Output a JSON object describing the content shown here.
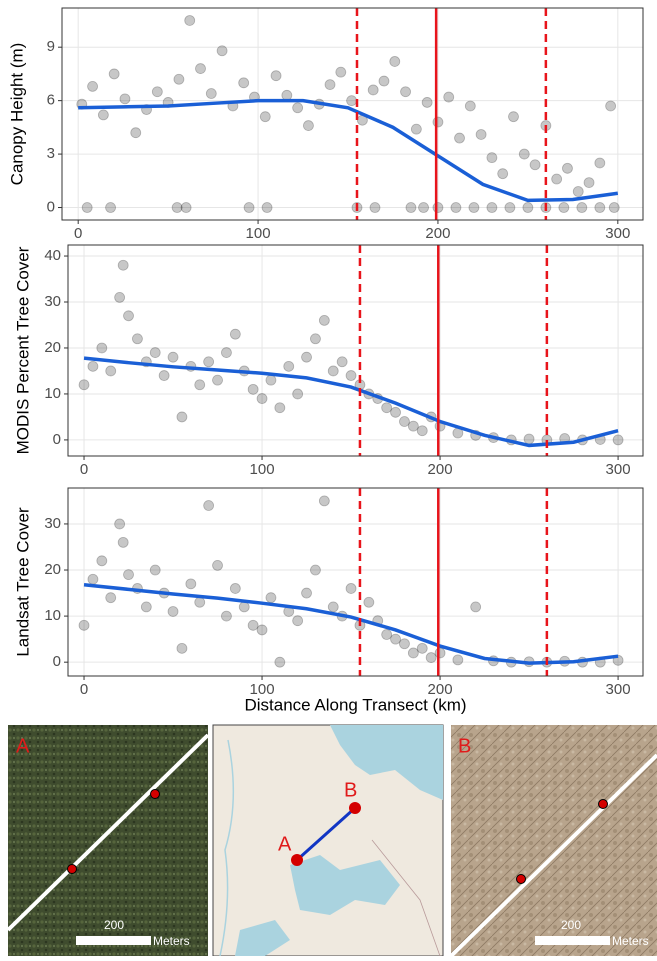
{
  "chart_data": [
    {
      "type": "scatter",
      "ylabel": "Canopy Height (m)",
      "xlim": [
        -9,
        314
      ],
      "xticks": [
        0,
        100,
        200,
        300
      ],
      "ylim": [
        -0.7,
        11.2
      ],
      "yticks": [
        0,
        3,
        6,
        9
      ],
      "grid": true,
      "series": [
        {
          "color": "#000000",
          "x": [
            2,
            8,
            14,
            20,
            26,
            32,
            38,
            44,
            50,
            56,
            62,
            68,
            74,
            80,
            86,
            92,
            98,
            104,
            110,
            116,
            122,
            128,
            134,
            140,
            146,
            152,
            158,
            164,
            170,
            176,
            182,
            188,
            194,
            200,
            206,
            212,
            218,
            224,
            230,
            236,
            242,
            248,
            254,
            260,
            266,
            272,
            278,
            284,
            290,
            296,
            5,
            18,
            55,
            60,
            95,
            105,
            155,
            165,
            185,
            192,
            200,
            210,
            220,
            230,
            240,
            250,
            260,
            270,
            280,
            290,
            298
          ],
          "values": [
            5.8,
            6.8,
            5.2,
            7.5,
            6.1,
            4.2,
            5.5,
            6.5,
            5.9,
            7.2,
            10.5,
            7.8,
            6.4,
            8.8,
            5.7,
            7.0,
            6.2,
            5.1,
            7.4,
            6.3,
            5.6,
            4.6,
            5.8,
            6.9,
            7.6,
            6.0,
            4.9,
            6.6,
            7.1,
            8.2,
            6.5,
            4.4,
            5.9,
            4.8,
            6.2,
            3.9,
            5.7,
            4.1,
            2.8,
            1.9,
            5.1,
            3.0,
            2.4,
            4.6,
            1.6,
            2.2,
            0.9,
            1.4,
            2.5,
            5.7,
            0,
            0,
            0,
            0,
            0,
            0,
            0,
            0,
            0,
            0,
            0,
            0,
            0,
            0,
            0,
            0,
            0,
            0,
            0,
            0,
            0
          ]
        }
      ],
      "smooth": {
        "color": "#1a5fd6",
        "x": [
          0,
          25,
          50,
          75,
          100,
          125,
          150,
          175,
          200,
          225,
          250,
          275,
          300
        ],
        "values": [
          5.6,
          5.65,
          5.7,
          5.85,
          6.0,
          6.0,
          5.6,
          4.5,
          2.9,
          1.3,
          0.4,
          0.45,
          0.8
        ]
      },
      "vlines": {
        "color": "#e8141b",
        "x": [
          155,
          199,
          260
        ],
        "styles": [
          "dashed",
          "solid",
          "dashed"
        ]
      }
    },
    {
      "type": "scatter",
      "ylabel": "MODIS Percent Tree Cover",
      "xlim": [
        -9,
        314
      ],
      "xticks": [
        0,
        100,
        200,
        300
      ],
      "ylim": [
        -3.5,
        42.4
      ],
      "yticks": [
        0,
        10,
        20,
        30,
        40
      ],
      "grid": true,
      "series": [
        {
          "color": "#000000",
          "x": [
            0,
            5,
            10,
            15,
            20,
            22,
            25,
            30,
            35,
            40,
            45,
            50,
            55,
            60,
            65,
            70,
            75,
            80,
            85,
            90,
            95,
            100,
            105,
            110,
            115,
            120,
            125,
            130,
            135,
            140,
            145,
            150,
            155,
            160,
            165,
            170,
            175,
            180,
            185,
            190,
            195,
            200,
            210,
            220,
            230,
            240,
            250,
            260,
            270,
            280,
            290,
            300
          ],
          "values": [
            12,
            16,
            20,
            15,
            31,
            38,
            27,
            22,
            17,
            19,
            14,
            18,
            5,
            16,
            12,
            17,
            13,
            19,
            23,
            15,
            11,
            9,
            13,
            7,
            16,
            10,
            18,
            22,
            26,
            15,
            17,
            14,
            12,
            10,
            9,
            7,
            6,
            4,
            3,
            2,
            5,
            3,
            1.5,
            1,
            0.5,
            0,
            0.2,
            0,
            0.3,
            0,
            0.1,
            0
          ]
        }
      ],
      "smooth": {
        "color": "#1a5fd6",
        "x": [
          0,
          25,
          50,
          75,
          100,
          125,
          150,
          175,
          200,
          225,
          250,
          275,
          300
        ],
        "values": [
          17.8,
          16.8,
          15.9,
          15.2,
          14.5,
          13.5,
          11.5,
          8.0,
          4.0,
          1.0,
          -1.2,
          -0.5,
          2.0
        ]
      },
      "vlines": {
        "color": "#e8141b",
        "x": [
          155,
          199,
          260
        ],
        "styles": [
          "dashed",
          "solid",
          "dashed"
        ]
      }
    },
    {
      "type": "scatter",
      "ylabel": "Landsat Tree Cover",
      "xlabel": "Distance Along Transect (km)",
      "xlim": [
        -9,
        314
      ],
      "xticks": [
        0,
        100,
        200,
        300
      ],
      "ylim": [
        -3,
        37.8
      ],
      "yticks": [
        0,
        10,
        20,
        30
      ],
      "grid": true,
      "series": [
        {
          "color": "#000000",
          "x": [
            0,
            5,
            10,
            15,
            20,
            22,
            25,
            30,
            35,
            40,
            45,
            50,
            55,
            60,
            65,
            70,
            75,
            80,
            85,
            90,
            95,
            100,
            105,
            110,
            115,
            120,
            125,
            130,
            135,
            140,
            145,
            150,
            155,
            160,
            165,
            170,
            175,
            180,
            185,
            190,
            195,
            200,
            210,
            220,
            230,
            240,
            250,
            260,
            270,
            280,
            290,
            300
          ],
          "values": [
            8,
            18,
            22,
            14,
            30,
            26,
            19,
            16,
            12,
            20,
            15,
            11,
            3,
            17,
            13,
            34,
            21,
            10,
            16,
            12,
            8,
            7,
            14,
            0,
            11,
            9,
            15,
            20,
            35,
            12,
            10,
            16,
            8,
            13,
            9,
            6,
            5,
            4,
            2,
            3,
            1,
            2,
            0.5,
            12,
            0.3,
            0,
            0.1,
            0,
            0.2,
            0,
            0,
            0.4
          ]
        }
      ],
      "smooth": {
        "color": "#1a5fd6",
        "x": [
          0,
          25,
          50,
          75,
          100,
          125,
          150,
          175,
          200,
          225,
          250,
          275,
          300
        ],
        "values": [
          16.8,
          15.8,
          14.8,
          13.9,
          12.8,
          11.6,
          9.8,
          7.0,
          3.5,
          0.8,
          -0.2,
          0.1,
          1.3
        ]
      },
      "vlines": {
        "color": "#e8141b",
        "x": [
          155,
          199,
          260
        ],
        "styles": [
          "dashed",
          "solid",
          "dashed"
        ]
      }
    }
  ],
  "maps": [
    {
      "corner_label": "A",
      "scale_value": "200",
      "scale_unit": "Meters"
    },
    {
      "labels": [
        "A",
        "B"
      ]
    },
    {
      "corner_label": "B",
      "scale_value": "200",
      "scale_unit": "Meters"
    }
  ]
}
